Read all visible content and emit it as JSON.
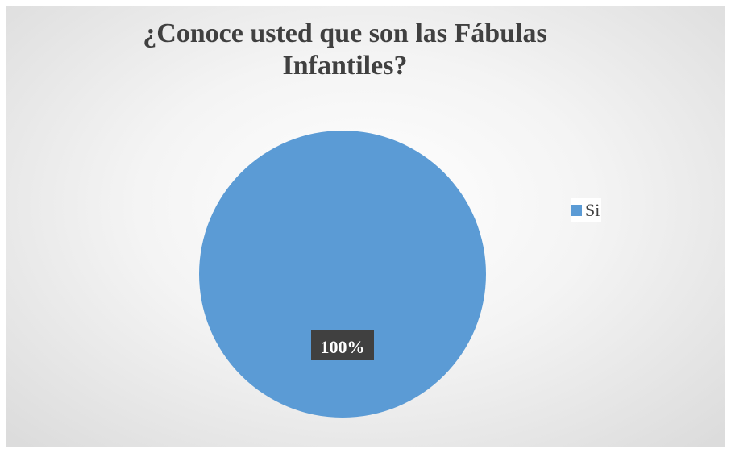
{
  "chart_data": {
    "type": "pie",
    "title": [
      "¿Conoce usted que son las Fábulas",
      "Infantiles?"
    ],
    "categories": [
      "Si"
    ],
    "values": [
      100
    ],
    "data_labels": [
      "100%"
    ],
    "colors": [
      "#5b9bd5"
    ],
    "legend_position": "right",
    "label_style": {
      "background": "#404040",
      "color": "#ffffff"
    }
  }
}
